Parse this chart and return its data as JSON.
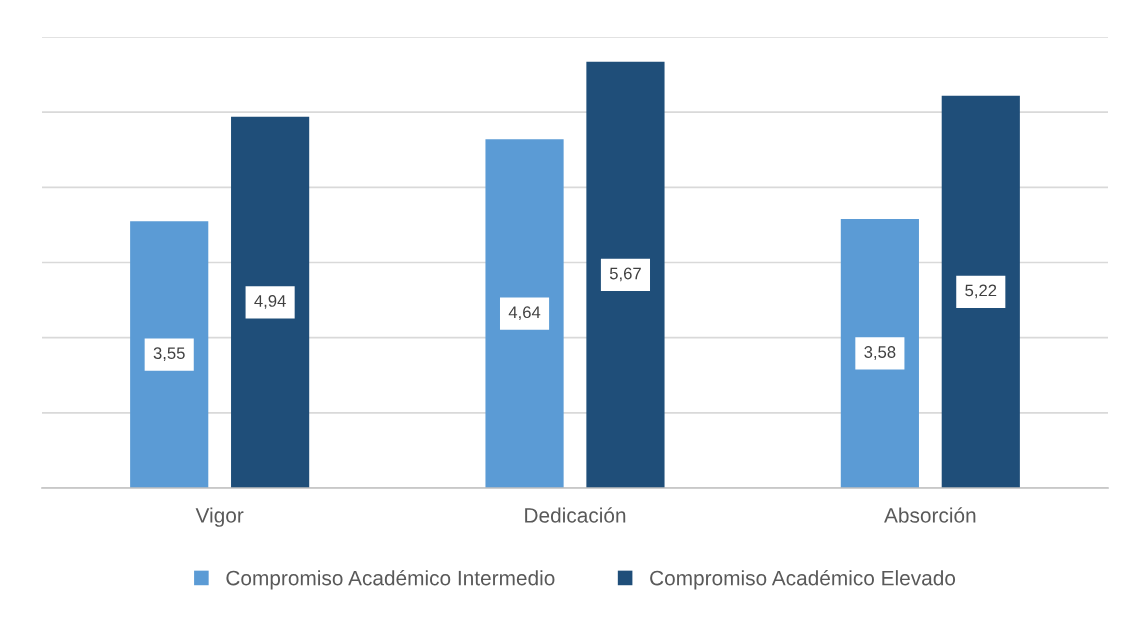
{
  "chart_data": {
    "type": "bar",
    "categories": [
      "Vigor",
      "Dedicación",
      "Absorción"
    ],
    "series": [
      {
        "name": "Compromiso Académico Intermedio",
        "color": "#5b9bd5",
        "values": [
          3.55,
          4.64,
          3.58
        ],
        "value_labels": [
          "3,55",
          "4,64",
          "3,58"
        ]
      },
      {
        "name": "Compromiso Académico Elevado",
        "color": "#1f4e79",
        "values": [
          4.94,
          5.67,
          5.22
        ],
        "value_labels": [
          "4,94",
          "5,67",
          "5,22"
        ]
      }
    ],
    "ylim": [
      0,
      6
    ],
    "yticks": [
      {
        "value": 0,
        "label": null
      },
      {
        "value": 1,
        "label": null
      },
      {
        "value": 2,
        "label": null
      },
      {
        "value": 3,
        "label": null
      },
      {
        "value": 4,
        "label": null
      },
      {
        "value": 5,
        "label": null
      },
      {
        "value": 6,
        "label": null
      }
    ],
    "grid": "y",
    "legend": "bottom",
    "tick_labels": "x"
  }
}
